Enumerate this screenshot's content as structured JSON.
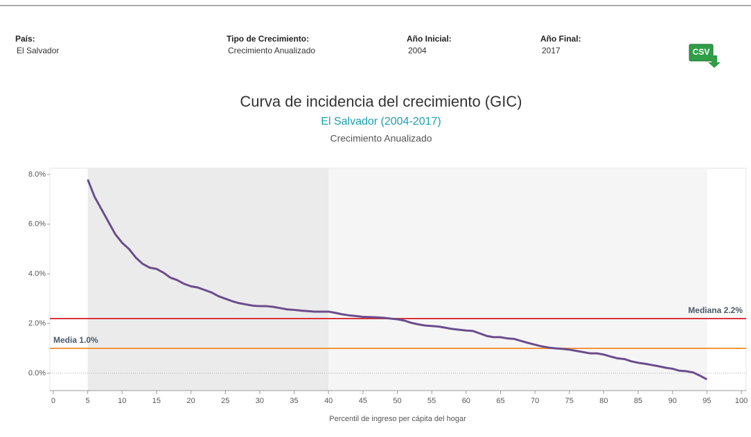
{
  "header": {
    "filters": [
      {
        "label": "País:",
        "value": "El Salvador"
      },
      {
        "label": "Tipo de Crecimiento:",
        "value": "Crecimiento Anualizado"
      },
      {
        "label": "Año Inicial:",
        "value": "2004"
      },
      {
        "label": "Año Final:",
        "value": "2017"
      }
    ],
    "csv_button": "CSV"
  },
  "chart_data": {
    "type": "line",
    "title": "Curva de incidencia del crecimiento (GIC)",
    "subtitle": "El Salvador (2004-2017)",
    "subtitle2": "Crecimiento Anualizado",
    "x_label": "Percentil de ingreso per cápita del hogar",
    "xlim": [
      -0.5,
      100.7
    ],
    "ylim": [
      -0.7,
      8.25
    ],
    "xticks": [
      0,
      5,
      10,
      15,
      20,
      25,
      30,
      35,
      40,
      45,
      50,
      55,
      60,
      65,
      70,
      75,
      80,
      85,
      90,
      95,
      100
    ],
    "yticks": [
      {
        "value": 0,
        "label": "0.0%"
      },
      {
        "value": 2,
        "label": "2.0%"
      },
      {
        "value": 4,
        "label": "4.0%"
      },
      {
        "value": 6,
        "label": "6.0%"
      },
      {
        "value": 8,
        "label": "8.0%"
      }
    ],
    "bands": [
      {
        "from": 5,
        "to": 40,
        "color": "#ebebeb"
      },
      {
        "from": 40,
        "to": 95,
        "color": "#f5f5f5"
      }
    ],
    "reference_lines": [
      {
        "label": "Mediana 2.2%",
        "value": 2.2,
        "color": "#d9343f",
        "label_position": "right"
      },
      {
        "label": "Media 1.0%",
        "value": 1.0,
        "color": "#f2953a",
        "label_position": "left"
      }
    ],
    "x": [
      5,
      6,
      7,
      8,
      9,
      10,
      11,
      12,
      13,
      14,
      15,
      16,
      17,
      18,
      19,
      20,
      21,
      22,
      23,
      24,
      25,
      26,
      27,
      28,
      29,
      30,
      31,
      32,
      33,
      34,
      35,
      36,
      37,
      38,
      39,
      40,
      41,
      42,
      43,
      44,
      45,
      46,
      47,
      48,
      49,
      50,
      51,
      52,
      53,
      54,
      55,
      56,
      57,
      58,
      59,
      60,
      61,
      62,
      63,
      64,
      65,
      66,
      67,
      68,
      69,
      70,
      71,
      72,
      73,
      74,
      75,
      76,
      77,
      78,
      79,
      80,
      81,
      82,
      83,
      84,
      85,
      86,
      87,
      88,
      89,
      90,
      91,
      92,
      93,
      94,
      95
    ],
    "series": [
      {
        "name": "GIC",
        "color": "#6a4c8c",
        "values": [
          7.8,
          7.1,
          6.6,
          6.1,
          5.6,
          5.25,
          5.0,
          4.65,
          4.4,
          4.25,
          4.2,
          4.05,
          3.85,
          3.75,
          3.6,
          3.5,
          3.45,
          3.35,
          3.25,
          3.1,
          3.0,
          2.9,
          2.82,
          2.77,
          2.72,
          2.7,
          2.7,
          2.67,
          2.62,
          2.57,
          2.55,
          2.52,
          2.5,
          2.48,
          2.48,
          2.48,
          2.43,
          2.37,
          2.33,
          2.3,
          2.27,
          2.26,
          2.25,
          2.23,
          2.2,
          2.17,
          2.12,
          2.03,
          1.97,
          1.92,
          1.9,
          1.88,
          1.83,
          1.78,
          1.75,
          1.72,
          1.7,
          1.6,
          1.5,
          1.45,
          1.45,
          1.4,
          1.38,
          1.3,
          1.22,
          1.15,
          1.08,
          1.03,
          1.0,
          0.98,
          0.95,
          0.9,
          0.85,
          0.8,
          0.8,
          0.75,
          0.67,
          0.6,
          0.57,
          0.48,
          0.42,
          0.38,
          0.33,
          0.28,
          0.22,
          0.18,
          0.1,
          0.08,
          0.03,
          -0.1,
          -0.25
        ]
      }
    ]
  }
}
